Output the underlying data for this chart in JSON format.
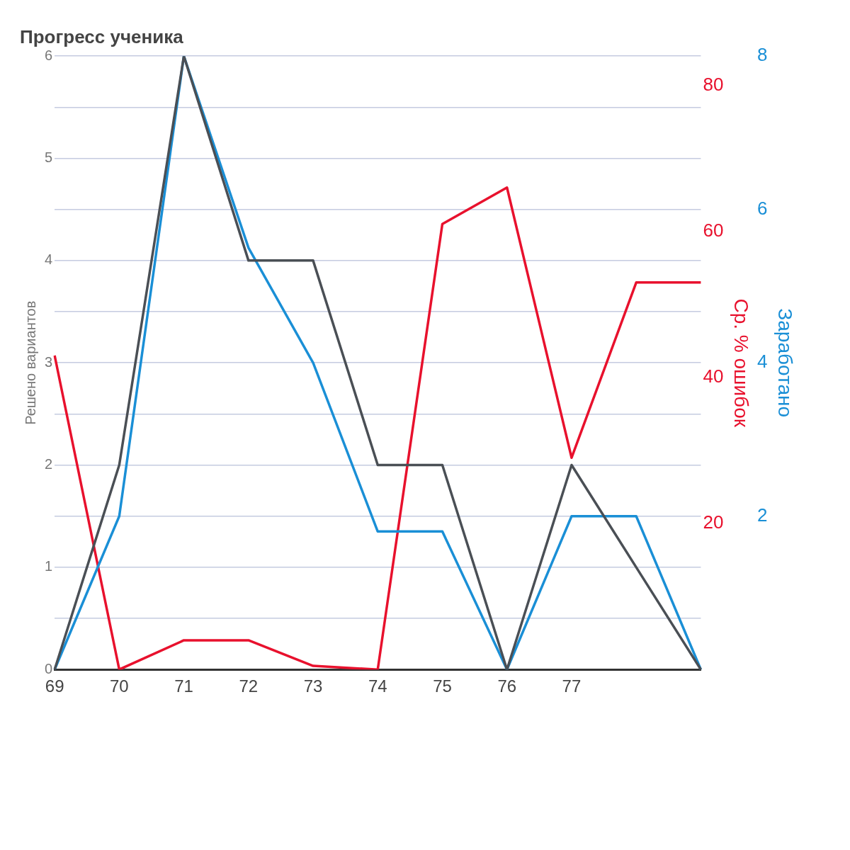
{
  "chart_data": {
    "type": "line",
    "title": "Прогресс ученика",
    "ylabel": "Решено вариантов",
    "y2label": "Заработано",
    "y3label": "Ср. % ошибок",
    "categories": [
      "69",
      "70",
      "71",
      "72",
      "73",
      "74",
      "75",
      "76",
      "77",
      null,
      null
    ],
    "series": [
      {
        "color": "#4a4f55",
        "values": [
          0,
          2,
          6,
          4,
          4,
          2,
          2,
          0,
          2,
          1,
          0
        ]
      },
      {
        "color": "#1a8fd6",
        "axis": "y2",
        "values": [
          0,
          2,
          8,
          5.5,
          4,
          1.8,
          1.8,
          0,
          2,
          2,
          0
        ]
      },
      {
        "color": "#e8112d",
        "axis": "y3",
        "values": [
          43,
          0,
          4,
          4,
          0.5,
          0,
          61,
          66,
          29,
          53,
          53
        ]
      }
    ],
    "ylim": [
      0,
      6
    ],
    "yticks": [
      0,
      {
        "value": 0.5,
        "label": null
      },
      1,
      {
        "value": 1.5,
        "label": null
      },
      2,
      {
        "value": 2.5,
        "label": null
      },
      3,
      {
        "value": 3.5,
        "label": null
      },
      4,
      {
        "value": 4.5,
        "label": null
      },
      5,
      {
        "value": 5.5,
        "label": null
      },
      6
    ],
    "y2lim": [
      0,
      8
    ],
    "y2ticks": [
      2,
      4,
      6,
      8
    ],
    "y3lim": [
      0,
      84
    ],
    "y3ticks": [
      20,
      40,
      60,
      80
    ],
    "grid": "y",
    "legend": false,
    "marker": "none",
    "line_style": "solid"
  }
}
